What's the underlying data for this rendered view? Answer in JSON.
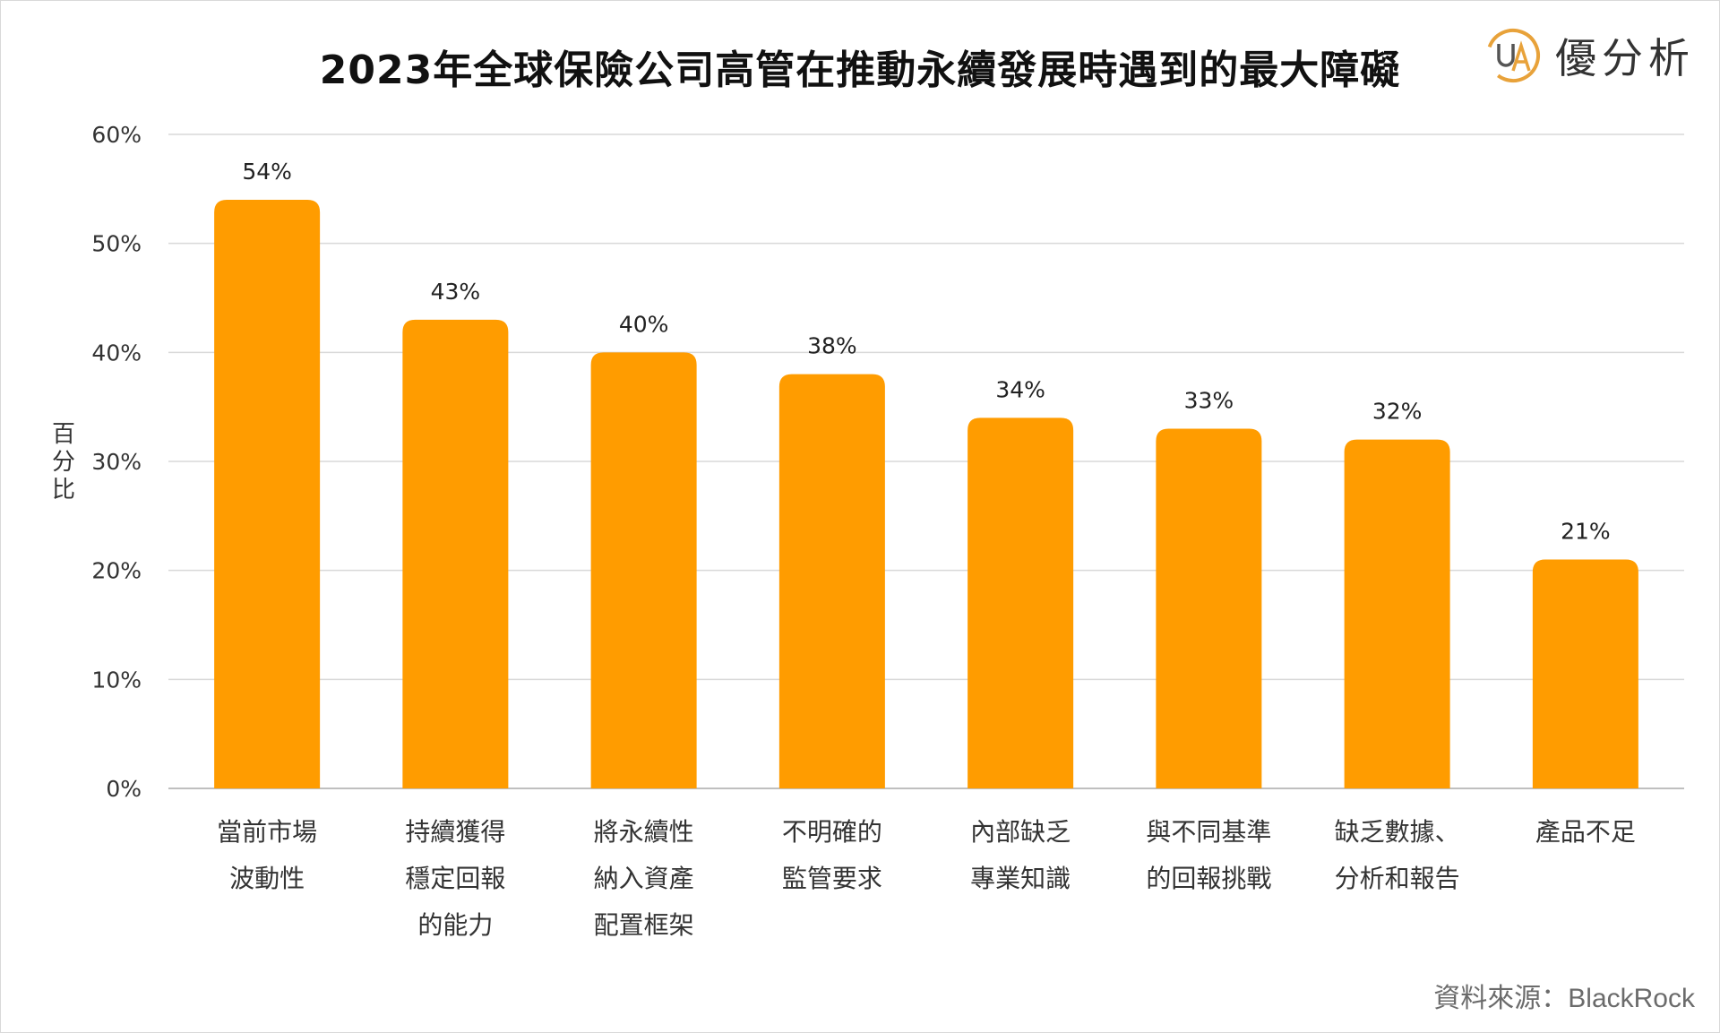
{
  "title": "2023年全球保險公司高管在推動永續發展時遇到的最大障礙",
  "logo": {
    "text": "優分析",
    "icon": "ua-logo-icon",
    "colors": {
      "ring": "#e8a23a",
      "letters": "#555555"
    }
  },
  "source": "資料來源：BlackRock",
  "colors": {
    "bar": "#FF9C00",
    "grid": "#d9d9d9",
    "axis": "#bfbfbf"
  },
  "chart_data": {
    "type": "bar",
    "title": "2023年全球保險公司高管在推動永續發展時遇到的最大障礙",
    "ylabel": "百分比",
    "xlabel": "",
    "ylim": [
      0,
      60
    ],
    "yticks": [
      0,
      10,
      20,
      30,
      40,
      50,
      60
    ],
    "ytick_labels": [
      "0%",
      "10%",
      "20%",
      "30%",
      "40%",
      "50%",
      "60%"
    ],
    "grid": true,
    "categories": [
      [
        "當前市場",
        "波動性"
      ],
      [
        "持續獲得",
        "穩定回報",
        "的能力"
      ],
      [
        "將永續性",
        "納入資產",
        "配置框架"
      ],
      [
        "不明確的",
        "監管要求"
      ],
      [
        "內部缺乏",
        "專業知識"
      ],
      [
        "與不同基準",
        "的回報挑戰"
      ],
      [
        "缺乏數據、",
        "分析和報告"
      ],
      [
        "產品不足"
      ]
    ],
    "values": [
      54,
      43,
      40,
      38,
      34,
      33,
      32,
      21
    ],
    "data_labels": [
      "54%",
      "43%",
      "40%",
      "38%",
      "34%",
      "33%",
      "32%",
      "21%"
    ]
  }
}
